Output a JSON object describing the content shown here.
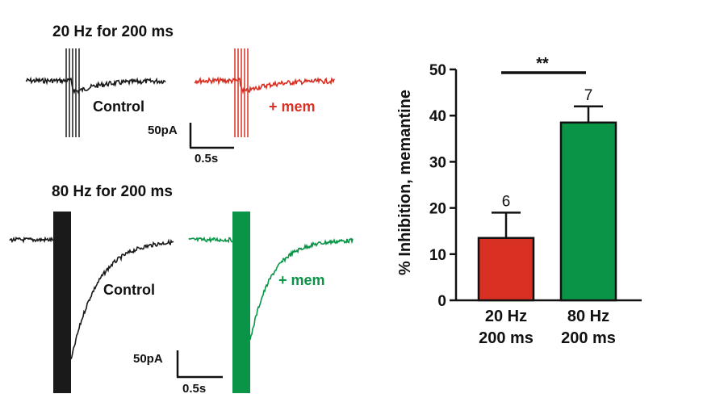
{
  "panels": {
    "top": {
      "title": "20 Hz for  200 ms",
      "control_label": "Control",
      "drug_label": "+ mem",
      "scale_current": "50pA",
      "scale_time": "0.5s"
    },
    "bottom": {
      "title": "80 Hz for 200 ms",
      "control_label": "Control",
      "drug_label": "+ mem",
      "scale_current": "50pA",
      "scale_time": "0.5s"
    }
  },
  "colors": {
    "control": "#1a1a1a",
    "mem_20hz": "#d93024",
    "mem_80hz": "#0a9447",
    "bar_20hz": "#d93024",
    "bar_80hz": "#0a9447"
  },
  "chart_data": {
    "type": "bar",
    "categories": [
      "20 Hz\n200 ms",
      "80 Hz\n200 ms"
    ],
    "category_lines": [
      [
        "20 Hz",
        "200 ms"
      ],
      [
        "80 Hz",
        "200 ms"
      ]
    ],
    "values": [
      13.5,
      38.5
    ],
    "errors": [
      5.5,
      3.5
    ],
    "n_labels": [
      "6",
      "7"
    ],
    "ylabel": "% Inhibition, memantine",
    "xlabel": "",
    "ylim": [
      0,
      50
    ],
    "yticks": [
      0,
      10,
      20,
      30,
      40,
      50
    ],
    "significance": "**",
    "grid": false
  }
}
